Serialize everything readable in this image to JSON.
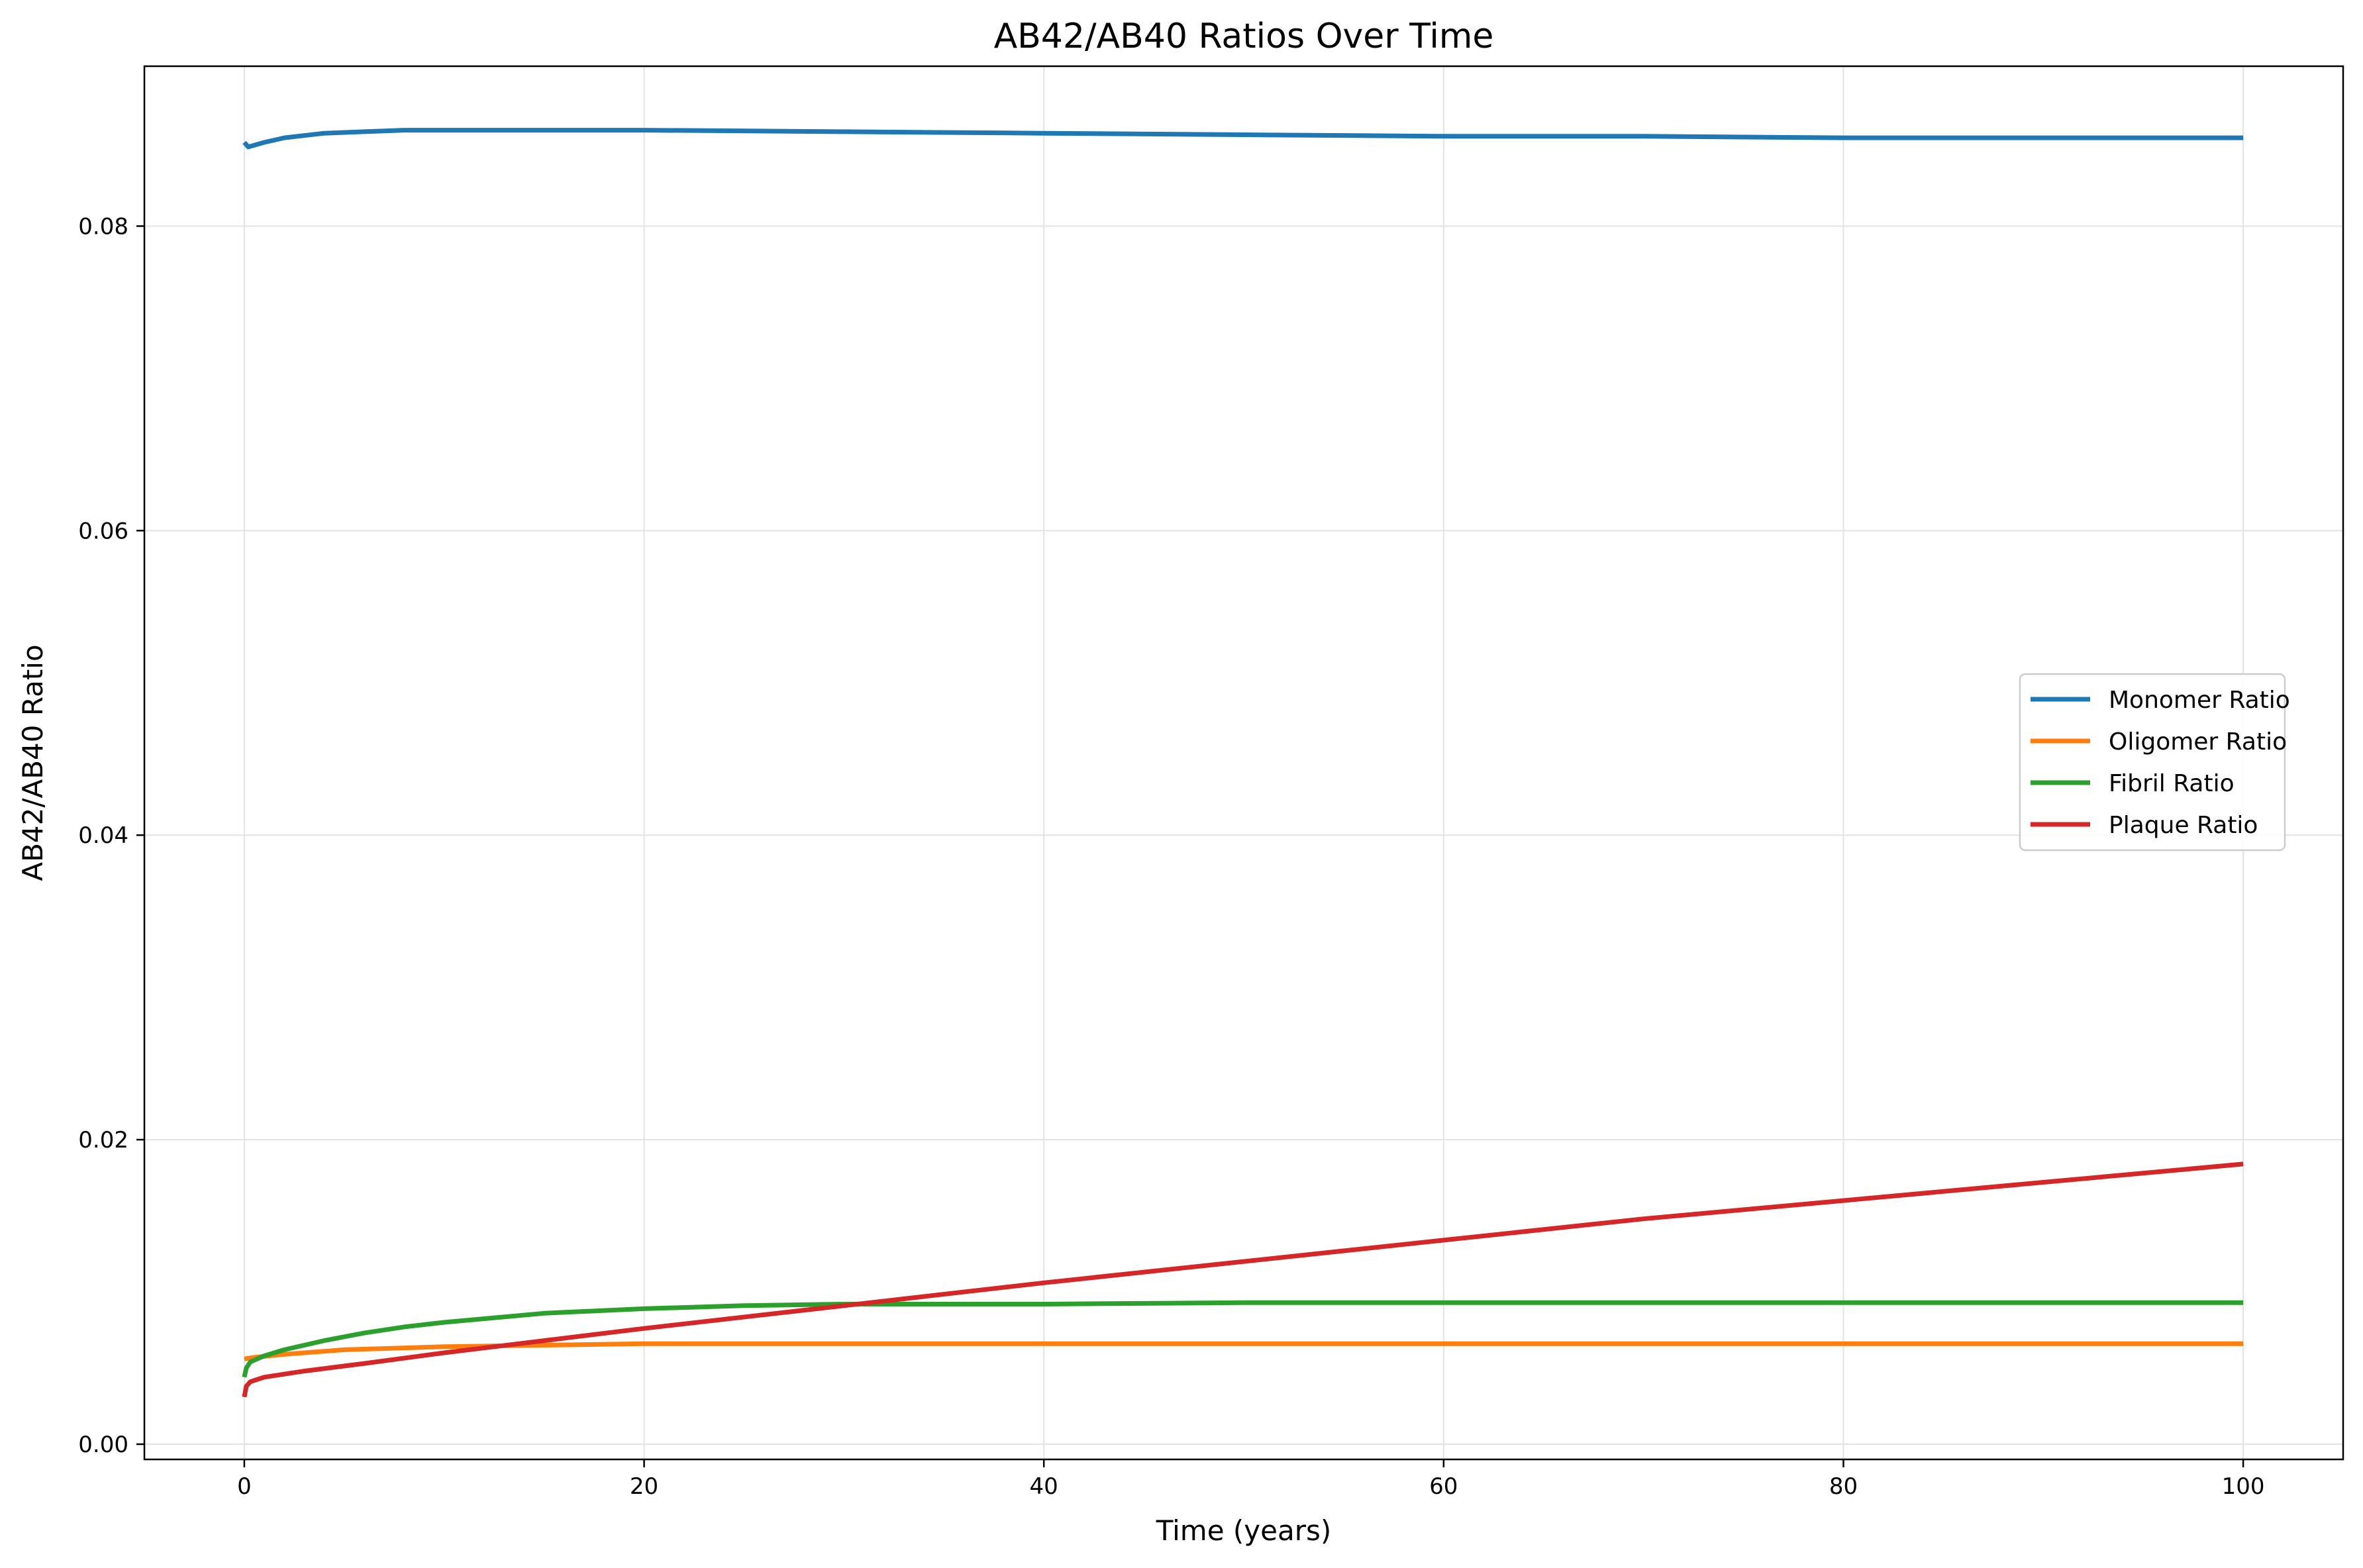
{
  "chart_data": {
    "type": "line",
    "title": "AB42/AB40 Ratios Over Time",
    "xlabel": "Time (years)",
    "ylabel": "AB42/AB40 Ratio",
    "xlim": [
      -5,
      105
    ],
    "ylim": [
      -0.001,
      0.0905
    ],
    "xticks": [
      0,
      20,
      40,
      60,
      80,
      100
    ],
    "yticks": [
      0.0,
      0.02,
      0.04,
      0.06,
      0.08
    ],
    "xtick_labels": [
      "0",
      "20",
      "40",
      "60",
      "80",
      "100"
    ],
    "ytick_labels": [
      "0.00",
      "0.02",
      "0.04",
      "0.06",
      "0.08"
    ],
    "grid": true,
    "legend_position": "center-right",
    "series": [
      {
        "name": "Monomer Ratio",
        "color": "#1f77b4",
        "x": [
          0,
          0.2,
          1,
          2,
          4,
          6,
          8,
          10,
          12,
          15,
          20,
          30,
          40,
          50,
          60,
          70,
          80,
          90,
          100
        ],
        "y": [
          0.0855,
          0.0852,
          0.0855,
          0.0858,
          0.0861,
          0.0862,
          0.0863,
          0.0863,
          0.0863,
          0.0863,
          0.0863,
          0.0862,
          0.0861,
          0.086,
          0.0859,
          0.0859,
          0.0858,
          0.0858,
          0.0858
        ]
      },
      {
        "name": "Oligomer Ratio",
        "color": "#ff7f0e",
        "x": [
          0,
          0.5,
          2,
          5,
          10,
          15,
          20,
          30,
          40,
          50,
          60,
          70,
          80,
          90,
          100
        ],
        "y": [
          0.0056,
          0.0057,
          0.0059,
          0.0062,
          0.0064,
          0.0065,
          0.0066,
          0.0066,
          0.0066,
          0.0066,
          0.0066,
          0.0066,
          0.0066,
          0.0066,
          0.0066
        ]
      },
      {
        "name": "Fibril Ratio",
        "color": "#2ca02c",
        "x": [
          0,
          0.1,
          0.3,
          1,
          2,
          4,
          6,
          8,
          10,
          15,
          20,
          25,
          30,
          40,
          50,
          60,
          70,
          80,
          90,
          100
        ],
        "y": [
          0.0044,
          0.005,
          0.0054,
          0.0058,
          0.0062,
          0.0068,
          0.0073,
          0.0077,
          0.008,
          0.0086,
          0.0089,
          0.0091,
          0.0092,
          0.0092,
          0.0093,
          0.0093,
          0.0093,
          0.0093,
          0.0093,
          0.0093
        ]
      },
      {
        "name": "Plaque Ratio",
        "color": "#d62728",
        "x": [
          0,
          0.1,
          0.3,
          1,
          3,
          6,
          10,
          15,
          20,
          30,
          40,
          50,
          60,
          70,
          80,
          90,
          100
        ],
        "y": [
          0.0031,
          0.0038,
          0.0041,
          0.0044,
          0.0048,
          0.0053,
          0.006,
          0.0068,
          0.0076,
          0.0091,
          0.0106,
          0.012,
          0.0134,
          0.0148,
          0.016,
          0.0172,
          0.0184
        ]
      }
    ]
  }
}
